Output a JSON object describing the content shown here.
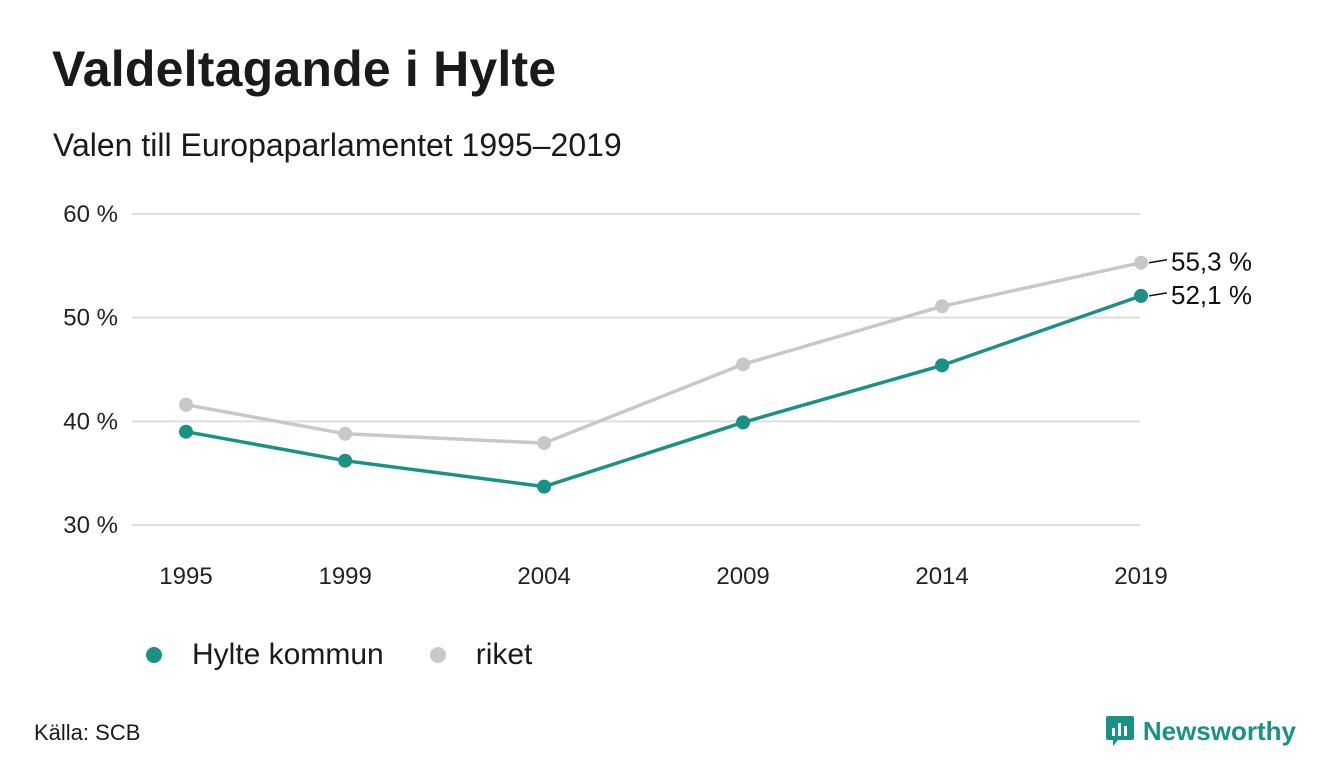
{
  "header": {
    "title": "Valdeltagande i Hylte",
    "subtitle": "Valen till Europaparlamentet 1995–2019"
  },
  "chart_data": {
    "type": "line",
    "title": "Valdeltagande i Hylte",
    "subtitle": "Valen till Europaparlamentet 1995–2019",
    "xlabel": "",
    "ylabel": "",
    "x": [
      "1995",
      "1999",
      "2004",
      "2009",
      "2014",
      "2019"
    ],
    "ylim": [
      30,
      60
    ],
    "yticks": [
      30,
      40,
      50,
      60
    ],
    "ytick_labels": [
      "30 %",
      "40 %",
      "50 %",
      "60 %"
    ],
    "grid": "horizontal",
    "legend_position": "bottom-left",
    "series": [
      {
        "name": "riket",
        "color": "#c8c8c8",
        "values": [
          41.6,
          38.8,
          37.9,
          45.5,
          51.1,
          55.3
        ],
        "end_label": "55,3 %"
      },
      {
        "name": "Hylte kommun",
        "color": "#1a9185",
        "values": [
          39.0,
          36.2,
          33.7,
          39.9,
          45.4,
          52.1
        ],
        "end_label": "52,1 %"
      }
    ]
  },
  "legend": {
    "items": [
      {
        "label": "Hylte kommun",
        "color": "#1a9185"
      },
      {
        "label": "riket",
        "color": "#c8c8c8"
      }
    ]
  },
  "footer": {
    "source": "Källa: SCB",
    "brand": "Newsworthy",
    "brand_color": "#1a9185",
    "brand_icon": "bar-chart-speech-icon"
  }
}
